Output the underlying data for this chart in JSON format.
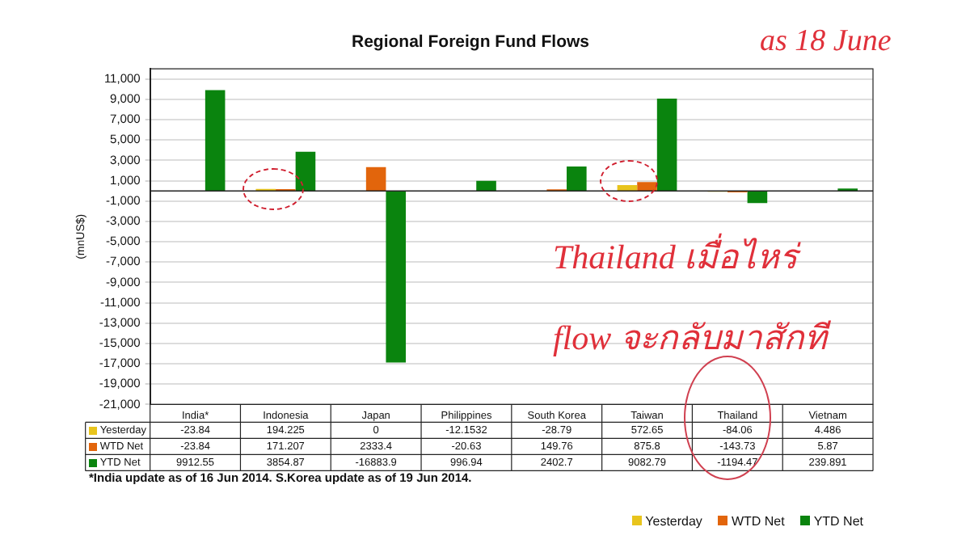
{
  "chart_data": {
    "type": "bar",
    "title": "Regional Foreign Fund Flows",
    "ylabel": "(mnUS$)",
    "categories": [
      "India*",
      "Indonesia",
      "Japan",
      "Philippines",
      "South Korea",
      "Taiwan",
      "Thailand",
      "Vietnam"
    ],
    "series": [
      {
        "name": "Yesterday",
        "color": "#e8c41c",
        "values": [
          -23.84,
          194.225,
          0,
          -12.1532,
          -28.79,
          572.65,
          -84.06,
          4.486
        ]
      },
      {
        "name": "WTD Net",
        "color": "#e2650c",
        "values": [
          -23.84,
          171.207,
          2333.4,
          -20.63,
          149.76,
          875.8,
          -143.73,
          5.87
        ]
      },
      {
        "name": "YTD Net",
        "color": "#0a840e",
        "values": [
          9912.55,
          3854.87,
          -16883.9,
          996.94,
          2402.7,
          9082.79,
          -1194.47,
          239.891
        ]
      }
    ],
    "ylim": [
      -21000,
      12000
    ],
    "yticks": [
      {
        "value": 11000,
        "label": "11,000"
      },
      {
        "value": 9000,
        "label": "9,000"
      },
      {
        "value": 7000,
        "label": "7,000"
      },
      {
        "value": 5000,
        "label": "5,000"
      },
      {
        "value": 3000,
        "label": "3,000"
      },
      {
        "value": 1000,
        "label": "1,000"
      },
      {
        "value": -1000,
        "label": "-1,000"
      },
      {
        "value": -3000,
        "label": "-3,000"
      },
      {
        "value": -5000,
        "label": "-5,000"
      },
      {
        "value": -7000,
        "label": "-7,000"
      },
      {
        "value": -9000,
        "label": "-9,000"
      },
      {
        "value": -11000,
        "label": "-11,000"
      },
      {
        "value": -13000,
        "label": "-13,000"
      },
      {
        "value": -15000,
        "label": "-15,000"
      },
      {
        "value": -17000,
        "label": "-17,000"
      },
      {
        "value": -19000,
        "label": "-19,000"
      },
      {
        "value": -21000,
        "label": "-21,000"
      }
    ],
    "grid": "y",
    "legend": "bottom left",
    "data_labels": true,
    "annotations": [
      "as 18 June",
      "Thailand เมื่อไหร่",
      "flow จะกลับมาสักที",
      "*India update as of 16 Jun 2014. S.Korea update as of 19 Jun 2014."
    ]
  }
}
